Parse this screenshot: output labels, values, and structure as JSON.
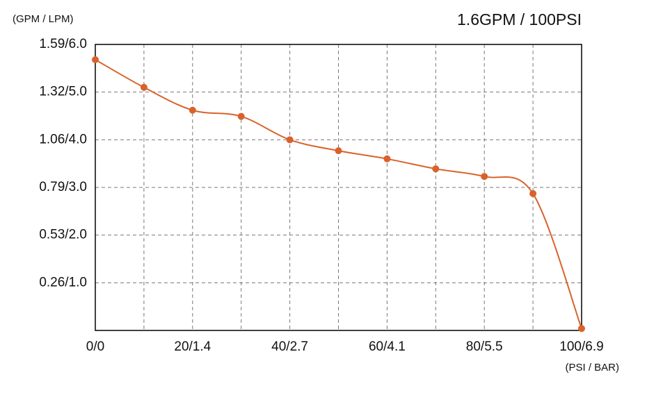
{
  "chart_data": {
    "type": "line",
    "title": "1.6GPM / 100PSI",
    "y_label": "(GPM / LPM)",
    "x_label": "(PSI / BAR)",
    "x": [
      0,
      10,
      20,
      30,
      40,
      50,
      60,
      70,
      80,
      90,
      100
    ],
    "values": [
      5.68,
      5.1,
      4.62,
      4.49,
      4.0,
      3.77,
      3.6,
      3.39,
      3.23,
      2.87,
      0.04
    ],
    "color": "#d9622b",
    "xlim": [
      0,
      100
    ],
    "xticks": [
      {
        "value": 0,
        "label": "0/0"
      },
      {
        "value": 20,
        "label": "20/1.4"
      },
      {
        "value": 40,
        "label": "40/2.7"
      },
      {
        "value": 60,
        "label": "60/4.1"
      },
      {
        "value": 80,
        "label": "80/5.5"
      },
      {
        "value": 100,
        "label": "100/6.9"
      }
    ],
    "xgrid_minor": [
      10,
      30,
      50,
      70,
      90
    ],
    "ylim": [
      0,
      6
    ],
    "yticks": [
      {
        "value": 1,
        "label": "0.26/1.0"
      },
      {
        "value": 2,
        "label": "0.53/2.0"
      },
      {
        "value": 3,
        "label": "0.79/3.0"
      },
      {
        "value": 4,
        "label": "1.06/4.0"
      },
      {
        "value": 5,
        "label": "1.32/5.0"
      },
      {
        "value": 6,
        "label": "1.59/6.0"
      }
    ],
    "grid": true
  }
}
